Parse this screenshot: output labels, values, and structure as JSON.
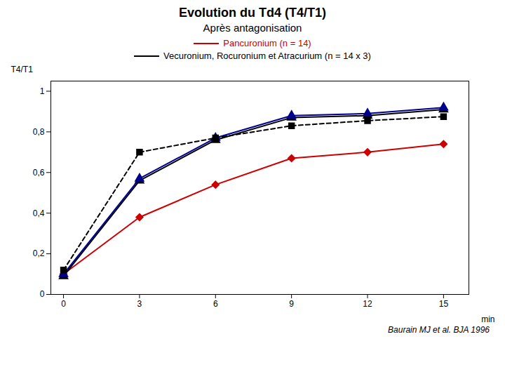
{
  "chart_data": {
    "type": "line",
    "title": "Evolution du Td4 (T4/T1)",
    "subtitle": "Après antagonisation",
    "x_label": "min",
    "y_label": "T4/T1",
    "caption": "Baurain MJ et al. BJA 1996",
    "x": [
      0,
      3,
      6,
      9,
      12,
      15
    ],
    "series": [
      {
        "name": "Pancuronium (n = 14)",
        "color": "#cc0000",
        "marker": "diamond",
        "line_style": "solid",
        "values": [
          0.1,
          0.38,
          0.54,
          0.67,
          0.7,
          0.74
        ]
      },
      {
        "name": "Vecuronium, Rocuronium et Atracurium (n = 14 x 3)",
        "color": "#000000",
        "marker": "triangle",
        "line_style": "solid",
        "values": [
          0.09,
          0.56,
          0.76,
          0.87,
          0.88,
          0.91
        ]
      },
      {
        "color": "#00008B",
        "marker": "triangle",
        "line_style": "solid",
        "values": [
          0.1,
          0.57,
          0.77,
          0.88,
          0.89,
          0.92
        ]
      },
      {
        "color": "#000000",
        "marker": "square",
        "line_style": "dashed",
        "values": [
          0.12,
          0.7,
          0.77,
          0.83,
          0.855,
          0.875
        ]
      }
    ],
    "xlim": [
      -0.5,
      16.0
    ],
    "xticks": [
      0,
      3,
      6,
      9,
      12,
      15
    ],
    "ylim": [
      0,
      1.05
    ],
    "yticks": [
      0,
      {
        "value": 0.2,
        "label": "0,2"
      },
      {
        "value": 0.4,
        "label": "0,4"
      },
      {
        "value": 0.6,
        "label": "0,6"
      },
      {
        "value": 0.8,
        "label": "0,8"
      },
      1
    ],
    "grid": false,
    "legend": "top"
  }
}
